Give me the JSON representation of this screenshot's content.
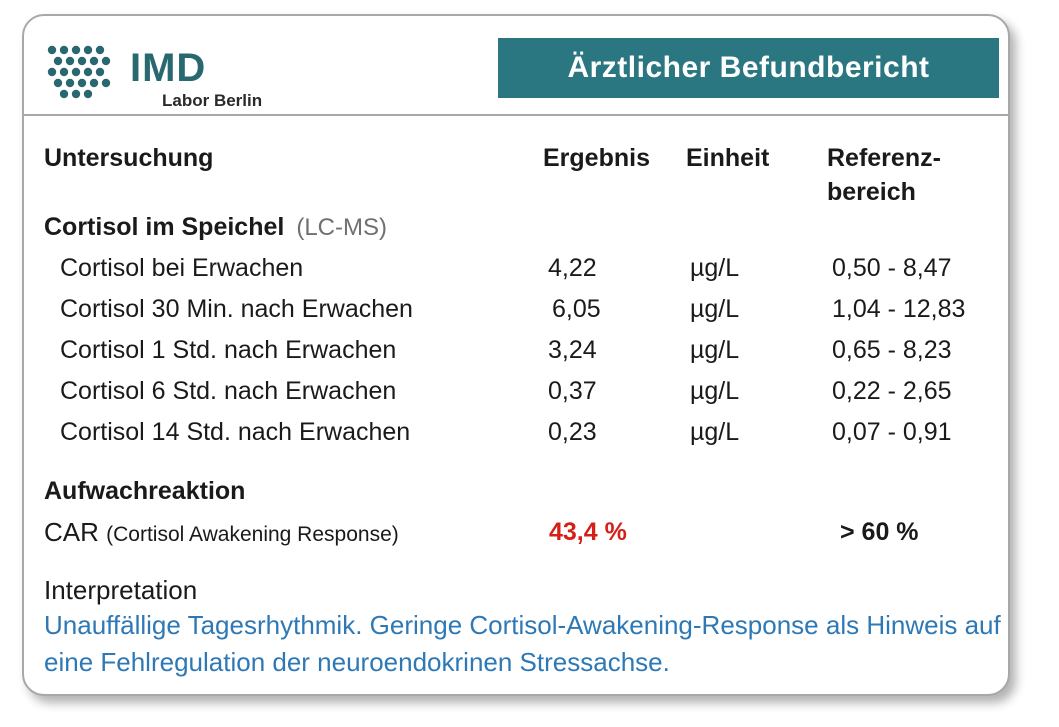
{
  "header": {
    "logo_text": "IMD",
    "logo_sub": "Labor Berlin",
    "title": "Ärztlicher Befundbericht"
  },
  "columns": {
    "test": "Untersuchung",
    "result": "Ergebnis",
    "unit": "Einheit",
    "reference_line1": "Referenz-",
    "reference_line2": "bereich"
  },
  "section_cortisol": {
    "title": "Cortisol im Speichel",
    "method": "(LC-MS)",
    "rows": [
      {
        "name": "Cortisol bei Erwachen",
        "result": "4,22",
        "unit": "µg/L",
        "reference": "0,50 - 8,47"
      },
      {
        "name": "Cortisol 30 Min. nach Erwachen",
        "result": "6,05",
        "unit": "µg/L",
        "reference": "1,04 - 12,83"
      },
      {
        "name": "Cortisol 1 Std. nach Erwachen",
        "result": "3,24",
        "unit": "µg/L",
        "reference": "0,65 - 8,23"
      },
      {
        "name": "Cortisol 6 Std. nach Erwachen",
        "result": "0,37",
        "unit": "µg/L",
        "reference": "0,22 - 2,65"
      },
      {
        "name": "Cortisol 14 Std. nach Erwachen",
        "result": "0,23",
        "unit": "µg/L",
        "reference": "0,07 - 0,91"
      }
    ]
  },
  "section_car": {
    "title": "Aufwachreaktion",
    "label_main": "CAR",
    "label_sub": "(Cortisol Awakening Response)",
    "result": "43,4 %",
    "reference": "> 60 %"
  },
  "interpretation": {
    "heading": "Interpretation",
    "text": "Unauffällige Tagesrhythmik. Geringe Cortisol-Awakening-Response als Hinweis auf eine Fehlregulation der neuroendokrinen Stressachse."
  },
  "colors": {
    "title_bg": "#2a7681",
    "logo": "#2a6870",
    "flag_red": "#d52018",
    "interpretation_blue": "#2e79b5"
  }
}
